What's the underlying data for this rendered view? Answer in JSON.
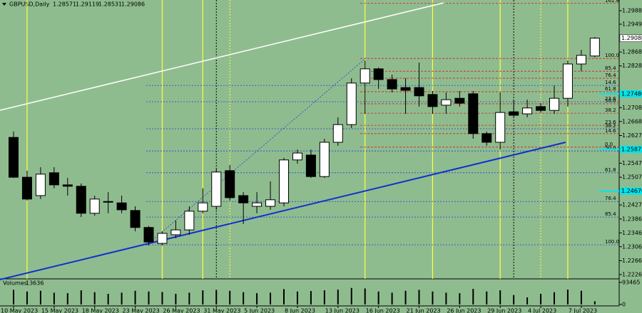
{
  "chart_data": {
    "type": "candlestick",
    "symbol": "GBPUSD,Daily",
    "categories": [
      "10 May 2023",
      null,
      null,
      "15 May 2023",
      null,
      null,
      "18 May 2023",
      null,
      null,
      "23 May 2023",
      null,
      null,
      "26 May 2023",
      null,
      null,
      "31 May 2023",
      null,
      null,
      "5 Jun 2023",
      null,
      null,
      "8 Jun 2023",
      null,
      null,
      "13 Jun 2023",
      null,
      null,
      "16 Jun 2023",
      null,
      null,
      "21 Jun 2023",
      null,
      null,
      "26 Jun 2023",
      null,
      null,
      "29 Jun 2023",
      null,
      null,
      "4 Jul 2023",
      null,
      null,
      "7 Jul 2023",
      null
    ],
    "open": [
      1.2622,
      1.2507,
      1.2454,
      1.252,
      1.2485,
      1.2481,
      1.2403,
      1.2437,
      1.2433,
      1.2411,
      1.2362,
      1.2316,
      1.2341,
      1.2355,
      1.2409,
      1.2423,
      1.2526,
      1.2454,
      1.2423,
      1.2423,
      1.2433,
      1.2557,
      1.2571,
      1.2509,
      1.2608,
      1.2659,
      1.2779,
      1.282,
      1.2789,
      1.2766,
      1.2766,
      1.2746,
      1.2715,
      1.2735,
      1.2748,
      1.2633,
      1.2608,
      1.2696,
      1.269,
      1.2711,
      1.27,
      1.2735,
      1.2834,
      1.28571
    ],
    "high": [
      1.2639,
      1.2526,
      1.2536,
      1.2536,
      1.2505,
      1.2489,
      1.2454,
      1.2464,
      1.2454,
      1.2423,
      1.2366,
      1.2351,
      1.2382,
      1.2423,
      1.2475,
      1.253,
      1.2542,
      1.2464,
      1.2464,
      1.2495,
      1.2563,
      1.2587,
      1.2587,
      1.2618,
      1.268,
      1.2793,
      1.2844,
      1.2824,
      1.2803,
      1.2793,
      1.2838,
      1.2756,
      1.2752,
      1.2756,
      1.2756,
      1.2639,
      1.2752,
      1.2731,
      1.2731,
      1.2721,
      1.2772,
      1.2844,
      1.2875,
      1.29119
    ],
    "low": [
      1.2505,
      1.244,
      1.2444,
      1.2475,
      1.2454,
      1.2392,
      1.2396,
      1.2403,
      1.2403,
      1.2351,
      1.231,
      1.231,
      1.2331,
      1.2341,
      1.2403,
      1.2413,
      1.244,
      1.2372,
      1.2403,
      1.2413,
      1.2423,
      1.2546,
      1.2505,
      1.2505,
      1.2598,
      1.2649,
      1.269,
      1.2762,
      1.2752,
      1.269,
      1.2711,
      1.269,
      1.269,
      1.2711,
      1.2618,
      1.2598,
      1.2587,
      1.268,
      1.268,
      1.2694,
      1.269,
      1.2711,
      1.2813,
      1.28531
    ],
    "close": [
      1.2507,
      1.2444,
      1.2516,
      1.2485,
      1.2481,
      1.2403,
      1.2444,
      1.2435,
      1.2413,
      1.2362,
      1.232,
      1.2345,
      1.2355,
      1.2409,
      1.2433,
      1.2522,
      1.2448,
      1.2433,
      1.2433,
      1.2442,
      1.2557,
      1.2577,
      1.2509,
      1.2608,
      1.2659,
      1.2779,
      1.282,
      1.2789,
      1.2762,
      1.2758,
      1.2742,
      1.2711,
      1.2731,
      1.2721,
      1.2633,
      1.2608,
      1.2694,
      1.2686,
      1.2707,
      1.27,
      1.2735,
      1.2834,
      1.2859,
      1.29086
    ],
    "bull_color": "#ffffff",
    "bear_color": "#000000",
    "ylim": [
      1.22136,
      1.30188
    ],
    "yticks": [
      {
        "value": 1.2988,
        "label": "1.29880"
      },
      {
        "value": 1.2949,
        "label": "1.29490"
      },
      1.28685,
      1.28285,
      {
        "value": 1.2708,
        "label": "1.27080"
      },
      {
        "value": 1.2668,
        "label": "1.26680"
      },
      1.26275,
      1.25475,
      {
        "value": 1.2507,
        "label": "1.25070"
      },
      {
        "value": 1.2427,
        "label": "1.24270"
      },
      1.23865,
      1.23465,
      1.23065,
      {
        "value": 1.2266,
        "label": "1.22660"
      },
      {
        "value": 1.2226,
        "label": "1.22260"
      }
    ],
    "highlight_levels": [
      {
        "value": 1.2748,
        "label": "1.27480"
      },
      1.25875,
      {
        "value": 1.2467,
        "label": "1.24670"
      }
    ],
    "highlight_color": "#00e5ee",
    "fib_sets": [
      {
        "color": "#d42020",
        "levels": [
          {
            "price": 1.3009,
            "label": "161.8"
          },
          {
            "price": 1.285,
            "label": "100.0"
          },
          {
            "price": 1.2813,
            "label": "85.4"
          },
          {
            "price": 1.2793,
            "label": "76.4"
          },
          {
            "price": 1.2754,
            "label": "61.8"
          },
          {
            "price": 1.2719,
            "label": "50.0"
          },
          {
            "price": 1.2692,
            "label": "38.2"
          },
          {
            "price": 1.2657,
            "label": "23.6"
          },
          {
            "price": 1.2633,
            "label": "14.6"
          },
          {
            "price": 1.2594,
            "label": "0.0"
          }
        ]
      },
      {
        "color": "#2040d0",
        "levels": [
          {
            "price": 1.2772,
            "label": "14.6"
          },
          {
            "price": 1.2725,
            "label": "23.6"
          },
          {
            "price": 1.2647,
            "label": "38.2"
          },
          {
            "price": 1.2583,
            "label": "50.0"
          },
          {
            "price": 1.252,
            "label": "61.8"
          },
          {
            "price": 1.2437,
            "label": "76.4"
          },
          {
            "price": 1.2392,
            "label": "85.4"
          },
          {
            "price": 1.2312,
            "label": "100.0"
          }
        ]
      }
    ],
    "volume": {
      "label": "Volumes",
      "values": [
        62000,
        55000,
        58000,
        50000,
        48000,
        60000,
        52000,
        45000,
        50000,
        58000,
        55000,
        53000,
        45000,
        50000,
        60000,
        62000,
        58000,
        52000,
        48000,
        50000,
        65000,
        55000,
        57000,
        60000,
        63000,
        70000,
        68000,
        55000,
        50000,
        58000,
        62000,
        55000,
        50000,
        48000,
        66000,
        55000,
        60000,
        40000,
        30000,
        45000,
        52000,
        63000,
        58000,
        13636
      ],
      "ylim": [
        0,
        93465
      ],
      "yticks": [
        93465,
        0
      ],
      "color": "#000000"
    }
  }
}
